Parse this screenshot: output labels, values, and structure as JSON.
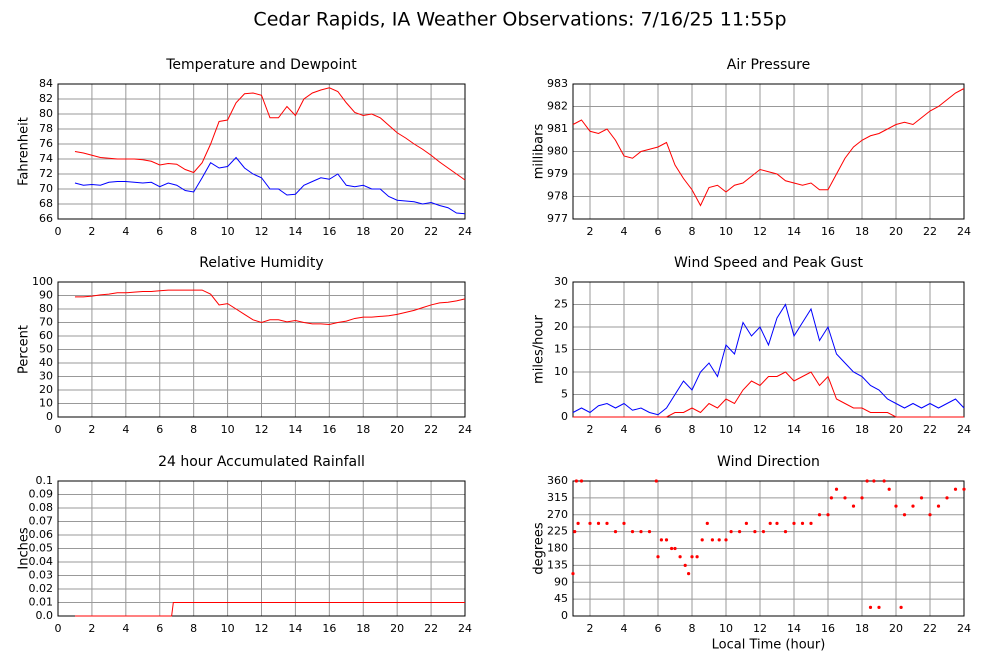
{
  "title": "Cedar Rapids, IA Weather Observations: 7/16/25 11:55p",
  "chart_data": [
    {
      "type": "line",
      "title": "Temperature and Dewpoint",
      "ylabel": "Fahrenheit",
      "grid": true,
      "xlim": [
        0,
        24
      ],
      "xticks": [
        0,
        2,
        4,
        6,
        8,
        10,
        12,
        14,
        16,
        18,
        20,
        22,
        24
      ],
      "ylim": [
        66,
        84
      ],
      "yticks": [
        66,
        68,
        70,
        72,
        74,
        76,
        78,
        80,
        82,
        84
      ],
      "x": [
        1,
        1.5,
        2,
        2.5,
        3,
        3.5,
        4,
        4.5,
        5,
        5.5,
        6,
        6.5,
        7,
        7.5,
        8,
        8.5,
        9,
        9.5,
        10,
        10.5,
        11,
        11.5,
        12,
        12.5,
        13,
        13.5,
        14,
        14.5,
        15,
        15.5,
        16,
        16.5,
        17,
        17.5,
        18,
        18.5,
        19,
        19.5,
        20,
        20.5,
        21,
        21.5,
        22,
        22.5,
        23,
        23.5,
        24
      ],
      "series": [
        {
          "color": "#ff0000",
          "values": [
            75,
            74.8,
            74.5,
            74.2,
            74.1,
            74,
            74,
            74,
            73.9,
            73.7,
            73.2,
            73.4,
            73.3,
            72.6,
            72.2,
            73.5,
            76,
            79,
            79.2,
            81.5,
            82.7,
            82.8,
            82.5,
            79.5,
            79.5,
            81,
            79.8,
            82,
            82.8,
            83.2,
            83.5,
            83,
            81.5,
            80.2,
            79.8,
            80,
            79.5,
            78.5,
            77.5,
            76.8,
            76,
            75.3,
            74.5,
            73.6,
            72.8,
            72,
            71.2
          ]
        },
        {
          "color": "#0000ff",
          "values": [
            70.8,
            70.5,
            70.6,
            70.5,
            70.9,
            71,
            71,
            70.9,
            70.8,
            70.9,
            70.3,
            70.8,
            70.5,
            69.8,
            69.6,
            71.5,
            73.5,
            72.8,
            73,
            74.2,
            72.8,
            72,
            71.5,
            70,
            70,
            69.2,
            69.3,
            70.5,
            71,
            71.5,
            71.3,
            72,
            70.5,
            70.3,
            70.5,
            70,
            70,
            69,
            68.5,
            68.4,
            68.3,
            68,
            68.2,
            67.8,
            67.5,
            66.8,
            66.7
          ]
        }
      ]
    },
    {
      "type": "line",
      "title": "Air Pressure",
      "ylabel": "millibars",
      "grid": true,
      "xlim": [
        1,
        24
      ],
      "xticks": [
        2,
        4,
        6,
        8,
        10,
        12,
        14,
        16,
        18,
        20,
        22,
        24
      ],
      "ylim": [
        977,
        983
      ],
      "yticks": [
        977,
        978,
        979,
        980,
        981,
        982,
        983
      ],
      "x": [
        1,
        1.5,
        2,
        2.5,
        3,
        3.5,
        4,
        4.5,
        5,
        5.5,
        6,
        6.5,
        7,
        7.5,
        8,
        8.5,
        9,
        9.5,
        10,
        10.5,
        11,
        11.5,
        12,
        12.5,
        13,
        13.5,
        14,
        14.5,
        15,
        15.5,
        16,
        16.5,
        17,
        17.5,
        18,
        18.5,
        19,
        19.5,
        20,
        20.5,
        21,
        21.5,
        22,
        22.5,
        23,
        23.5,
        24
      ],
      "series": [
        {
          "color": "#ff0000",
          "values": [
            981.2,
            981.4,
            980.9,
            980.8,
            981,
            980.5,
            979.8,
            979.7,
            980,
            980.1,
            980.2,
            980.4,
            979.4,
            978.8,
            978.3,
            977.6,
            978.4,
            978.5,
            978.2,
            978.5,
            978.6,
            978.9,
            979.2,
            979.1,
            979,
            978.7,
            978.6,
            978.5,
            978.6,
            978.3,
            978.3,
            979,
            979.7,
            980.2,
            980.5,
            980.7,
            980.8,
            981,
            981.2,
            981.3,
            981.2,
            981.5,
            981.8,
            982,
            982.3,
            982.6,
            982.8
          ]
        }
      ]
    },
    {
      "type": "line",
      "title": "Relative Humidity",
      "ylabel": "Percent",
      "grid": true,
      "xlim": [
        0,
        24
      ],
      "xticks": [
        0,
        2,
        4,
        6,
        8,
        10,
        12,
        14,
        16,
        18,
        20,
        22,
        24
      ],
      "ylim": [
        0,
        100
      ],
      "yticks": [
        0,
        10,
        20,
        30,
        40,
        50,
        60,
        70,
        80,
        90,
        100
      ],
      "x": [
        1,
        1.5,
        2,
        2.5,
        3,
        3.5,
        4,
        4.5,
        5,
        5.5,
        6,
        6.5,
        7,
        7.5,
        8,
        8.5,
        9,
        9.5,
        10,
        10.5,
        11,
        11.5,
        12,
        12.5,
        13,
        13.5,
        14,
        14.5,
        15,
        15.5,
        16,
        16.5,
        17,
        17.5,
        18,
        18.5,
        19,
        19.5,
        20,
        20.5,
        21,
        21.5,
        22,
        22.5,
        23,
        23.5,
        24
      ],
      "series": [
        {
          "color": "#ff0000",
          "values": [
            89,
            89,
            89.5,
            90.5,
            91,
            92,
            92,
            92.5,
            93,
            93,
            93.5,
            94,
            94,
            94,
            94,
            94,
            91,
            83,
            84,
            80,
            76,
            72,
            70,
            72,
            72,
            70.5,
            71.5,
            70,
            69,
            69,
            68.5,
            70,
            71,
            73,
            74,
            74,
            74.5,
            75,
            76,
            77.5,
            79,
            81,
            83,
            84.5,
            85,
            86,
            87.5
          ]
        }
      ]
    },
    {
      "type": "line",
      "title": "Wind Speed and Peak Gust",
      "ylabel": "miles/hour",
      "grid": true,
      "xlim": [
        1,
        24
      ],
      "xticks": [
        2,
        4,
        6,
        8,
        10,
        12,
        14,
        16,
        18,
        20,
        22,
        24
      ],
      "ylim": [
        0,
        30
      ],
      "yticks": [
        0,
        5,
        10,
        15,
        20,
        25,
        30
      ],
      "x": [
        1,
        1.5,
        2,
        2.5,
        3,
        3.5,
        4,
        4.5,
        5,
        5.5,
        6,
        6.5,
        7,
        7.5,
        8,
        8.5,
        9,
        9.5,
        10,
        10.5,
        11,
        11.5,
        12,
        12.5,
        13,
        13.5,
        14,
        14.5,
        15,
        15.5,
        16,
        16.5,
        17,
        17.5,
        18,
        18.5,
        19,
        19.5,
        20,
        20.5,
        21,
        21.5,
        22,
        22.5,
        23,
        23.5,
        24
      ],
      "series": [
        {
          "color": "#0000ff",
          "values": [
            1,
            2,
            1,
            2.5,
            3,
            2,
            3,
            1.5,
            2,
            1,
            0.5,
            2,
            5,
            8,
            6,
            10,
            12,
            9,
            16,
            14,
            21,
            18,
            20,
            16,
            22,
            25,
            18,
            21,
            24,
            17,
            20,
            14,
            12,
            10,
            9,
            7,
            6,
            4,
            3,
            2,
            3,
            2,
            3,
            2,
            3,
            4,
            2
          ]
        },
        {
          "color": "#ff0000",
          "values": [
            0,
            0,
            0,
            0,
            0,
            0,
            0,
            0,
            0,
            0,
            0,
            0,
            1,
            1,
            2,
            1,
            3,
            2,
            4,
            3,
            6,
            8,
            7,
            9,
            9,
            10,
            8,
            9,
            10,
            7,
            9,
            4,
            3,
            2,
            2,
            1,
            1,
            1,
            0,
            0,
            0,
            0,
            0,
            0,
            0,
            0,
            0
          ]
        }
      ]
    },
    {
      "type": "line",
      "title": "24 hour Accumulated Rainfall",
      "ylabel": "Inches",
      "grid": true,
      "xlim": [
        0,
        24
      ],
      "xticks": [
        0,
        2,
        4,
        6,
        8,
        10,
        12,
        14,
        16,
        18,
        20,
        22,
        24
      ],
      "ylim": [
        0,
        0.1
      ],
      "yticks": [
        {
          "value": 0,
          "label": "0.0"
        },
        0.01,
        0.02,
        0.03,
        0.04,
        0.05,
        0.06,
        0.07,
        0.08,
        0.09,
        0.1
      ],
      "x": [
        1,
        6.7,
        6.8,
        24
      ],
      "series": [
        {
          "color": "#ff0000",
          "values": [
            0,
            0,
            0.01,
            0.01
          ]
        }
      ]
    },
    {
      "type": "scatter",
      "title": "Wind Direction",
      "ylabel": "degrees",
      "xlabel": "Local Time (hour)",
      "grid": true,
      "xlim": [
        1,
        24
      ],
      "xticks": [
        2,
        4,
        6,
        8,
        10,
        12,
        14,
        16,
        18,
        20,
        22,
        24
      ],
      "ylim": [
        0,
        360
      ],
      "yticks": [
        0,
        45,
        90,
        135,
        180,
        225,
        270,
        315,
        360
      ],
      "x": [
        1,
        1.1,
        1.2,
        1.5,
        1.3,
        2,
        2.5,
        3,
        3.5,
        4,
        4.5,
        5,
        5.5,
        5.9,
        6,
        6.2,
        6.5,
        6.8,
        7,
        7.3,
        7.6,
        7.8,
        8,
        8.3,
        8.6,
        8.9,
        9.2,
        9.6,
        10,
        10.3,
        10.8,
        11.2,
        11.7,
        12.2,
        12.6,
        13,
        13.5,
        14,
        14.5,
        15,
        15.5,
        16,
        16.2,
        16.5,
        17,
        17.5,
        18,
        18.3,
        18.5,
        18.7,
        19,
        19.3,
        19.6,
        20,
        20.3,
        20.5,
        21,
        21.5,
        22,
        22.5,
        23,
        23.5,
        24
      ],
      "series": [
        {
          "color": "#ff0000",
          "values": [
            113,
            225,
            360,
            360,
            247,
            247,
            247,
            247,
            225,
            247,
            225,
            225,
            225,
            360,
            158,
            203,
            203,
            180,
            180,
            158,
            135,
            113,
            158,
            158,
            203,
            247,
            203,
            203,
            203,
            225,
            225,
            247,
            225,
            225,
            247,
            247,
            225,
            247,
            247,
            247,
            270,
            270,
            315,
            338,
            315,
            293,
            315,
            360,
            23,
            360,
            23,
            360,
            338,
            293,
            23,
            270,
            293,
            315,
            270,
            293,
            315,
            338,
            338
          ]
        }
      ]
    }
  ]
}
